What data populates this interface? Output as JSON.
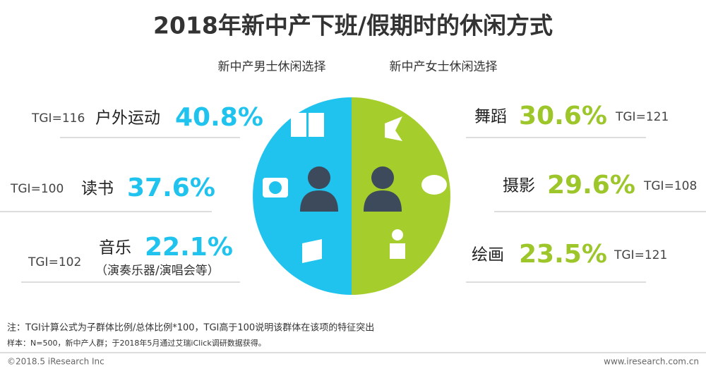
{
  "header": {
    "title": "2018年新中产下班/假期时的休闲方式"
  },
  "male": {
    "heading": "新中产男士休闲选择",
    "items": [
      {
        "tgi": "TGI=116",
        "label": "户外运动",
        "percent": "40.8%"
      },
      {
        "tgi": "TGI=100",
        "label": "读书",
        "percent": "37.6%"
      },
      {
        "tgi": "TGI=102",
        "label": "音乐",
        "percent": "22.1%",
        "note": "（演奏乐器/演唱会等）"
      }
    ]
  },
  "female": {
    "heading": "新中产女士休闲选择",
    "items": [
      {
        "tgi": "TGI=121",
        "label": "舞蹈",
        "percent": "30.6%"
      },
      {
        "tgi": "TGI=108",
        "label": "摄影",
        "percent": "29.6%"
      },
      {
        "tgi": "TGI=121",
        "label": "绘画",
        "percent": "23.5%"
      }
    ]
  },
  "notes": [
    "注：TGI计算公式为子群体比例/总体比例*100，TGI高于100说明该群体在该项的特征突出",
    "样本：N=500，新中产人群；于2018年5月通过艾瑞iClick调研数据获得。"
  ],
  "footer": {
    "copyright": "©2018.5 iResearch Inc",
    "website": "www.iresearch.com.cn"
  }
}
